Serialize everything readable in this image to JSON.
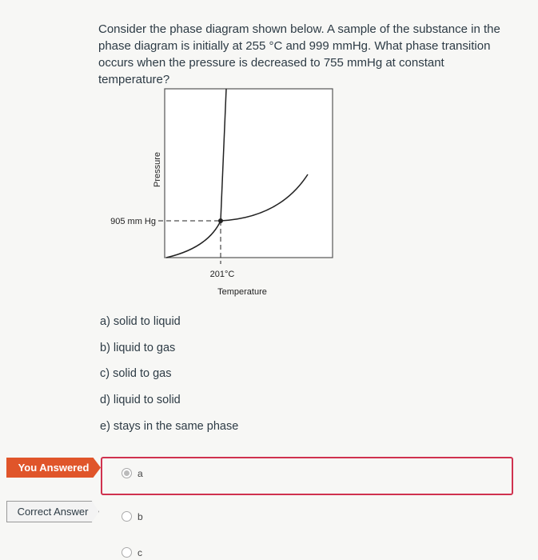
{
  "question": {
    "text": "Consider the phase diagram shown below. A sample of the substance in the phase diagram is initially at 255 °C and 999 mmHg. What phase transition occurs when the pressure is decreased to 755 mmHg at constant temperature?",
    "diagram": {
      "y_axis_label": "Pressure",
      "x_axis_label": "Temperature",
      "pressure_label": "905 mm Hg",
      "temperature_label": "201°C"
    },
    "options": [
      "a) solid to liquid",
      "b) liquid to gas",
      "c) solid to gas",
      "d) liquid to solid",
      "e) stays in the same phase"
    ]
  },
  "answers": {
    "you_answered": {
      "tag": "You Answered",
      "choice": "a"
    },
    "correct_answer": {
      "tag": "Correct Answer",
      "choice": "b"
    },
    "other_choice": "c"
  }
}
